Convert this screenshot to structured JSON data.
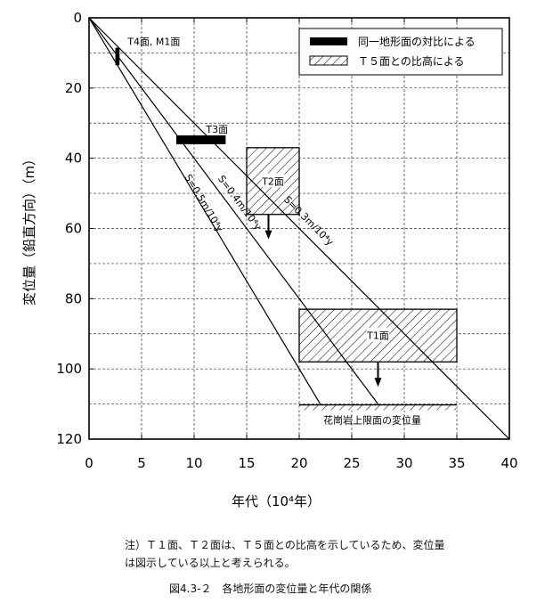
{
  "chart_data": {
    "type": "line",
    "xlabel": "年代（10⁴年）",
    "ylabel": "変位量（鉛直方向）（m）",
    "xlim": [
      0,
      40
    ],
    "ylim": [
      0,
      120
    ],
    "y_inverted": true,
    "grid": true,
    "xticks": [
      "0",
      "5",
      "10",
      "15",
      "20",
      "25",
      "30",
      "35",
      "40"
    ],
    "yticks": [
      "0",
      "20",
      "40",
      "60",
      "80",
      "100",
      "120"
    ],
    "series": [
      {
        "name": "S=0.5m/10⁴y",
        "x": [
          0,
          22
        ],
        "y": [
          0,
          110
        ]
      },
      {
        "name": "S=0.4m/10⁴y",
        "x": [
          0,
          27.5
        ],
        "y": [
          0,
          110
        ]
      },
      {
        "name": "S=0.3m/10⁴y",
        "x": [
          0,
          40
        ],
        "y": [
          0,
          120
        ]
      }
    ],
    "solid_markers": [
      {
        "label": "T4面, M1面",
        "x_range": [
          2.5,
          2.9
        ],
        "y_range": [
          8.5,
          13.5
        ]
      },
      {
        "label": "T3面",
        "x_range": [
          8.3,
          13
        ],
        "y_range": [
          33.5,
          36
        ]
      }
    ],
    "hatched_regions": [
      {
        "label": "T2面",
        "x_range": [
          15,
          20
        ],
        "y_range": [
          37,
          56
        ],
        "arrow": true
      },
      {
        "label": "T1面",
        "x_range": [
          20,
          35
        ],
        "y_range": [
          83,
          98
        ],
        "arrow": true
      }
    ],
    "baseline": {
      "label": "花崗岩上限面の変位量",
      "y": 110.5,
      "x_range": [
        20,
        35
      ]
    },
    "legend": {
      "placement": "top-right",
      "items": [
        {
          "label": "同一地形面の対比による",
          "style": "solid"
        },
        {
          "label": "Ｔ５面との比高による",
          "style": "hatched"
        }
      ]
    }
  },
  "note_line1": "注）Ｔ１面、Ｔ２面は、Ｔ５面との比高を示しているため、変位量",
  "note_line2": "は図示している以上と考えられる。",
  "caption": "図4.3-２　各地形面の変位量と年代の関係"
}
